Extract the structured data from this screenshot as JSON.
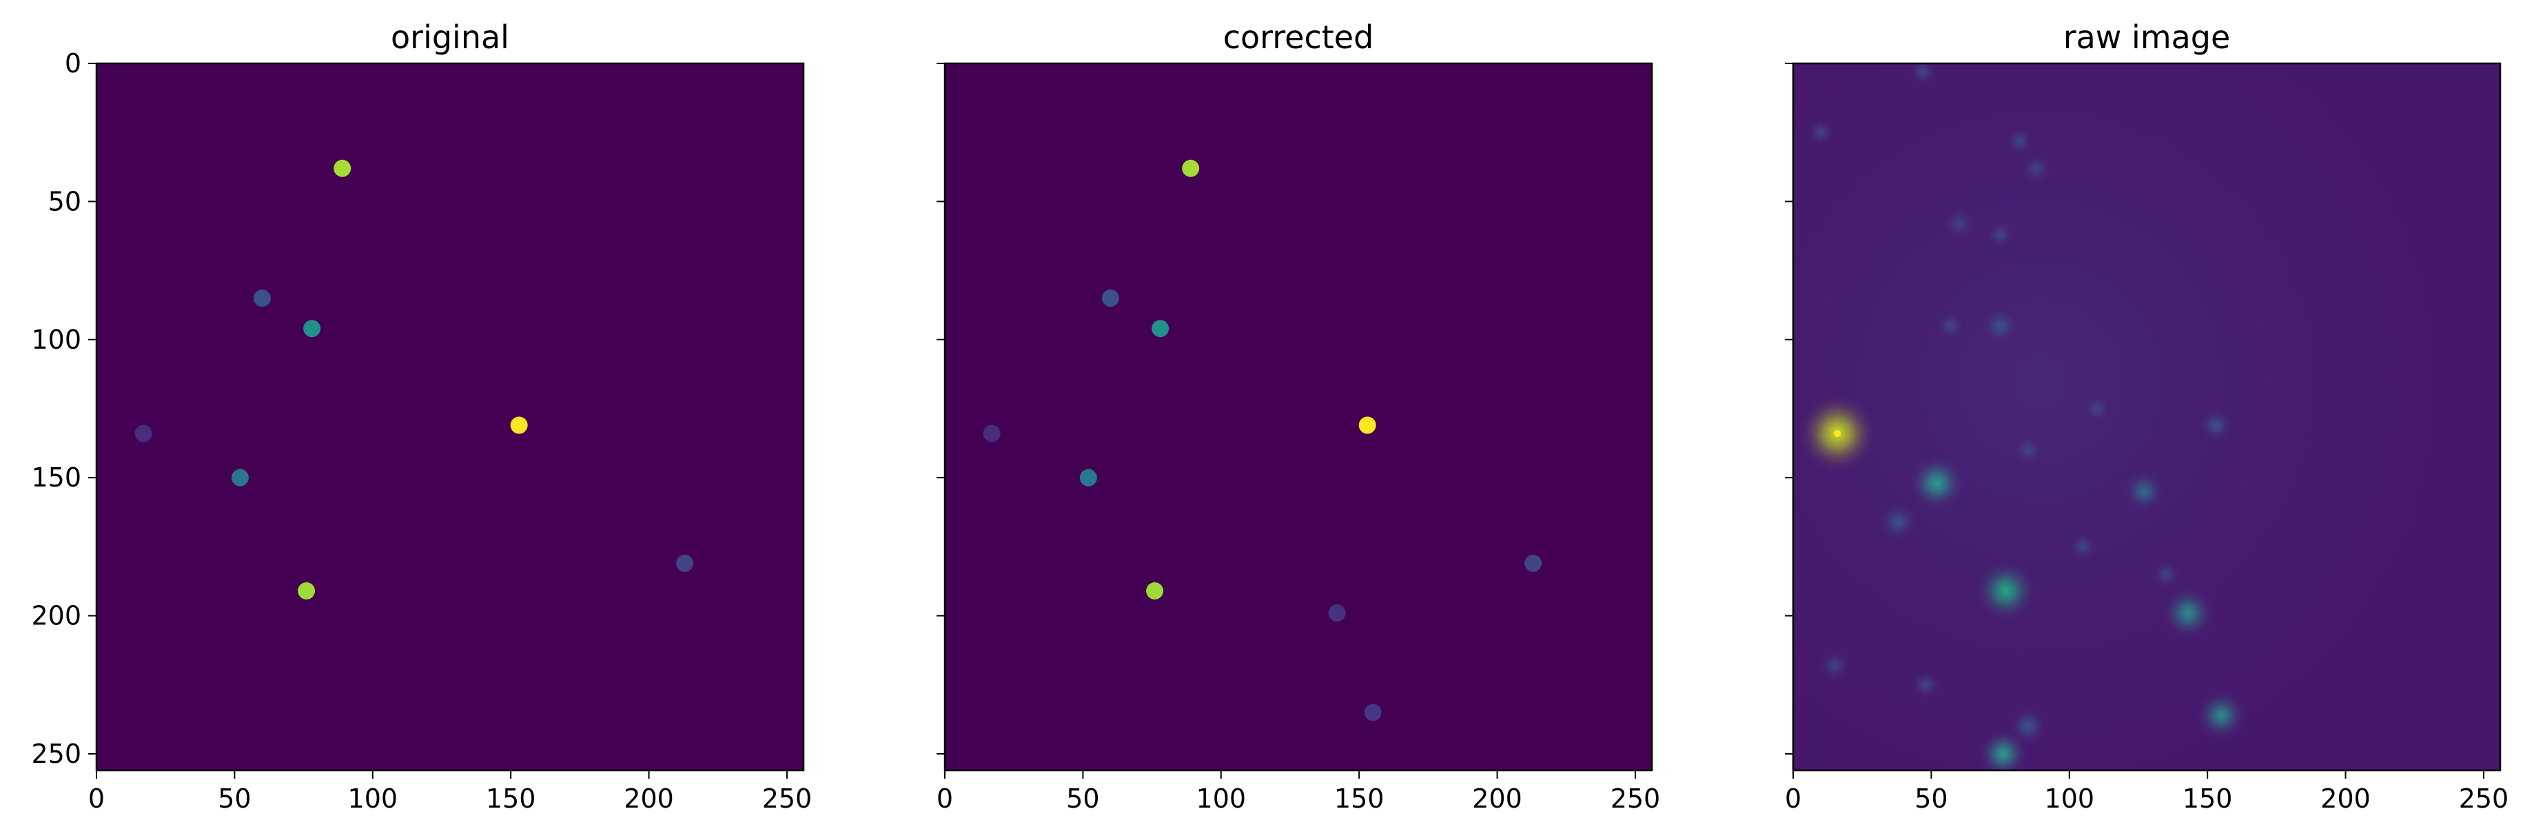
{
  "figure": {
    "background": "#ffffff",
    "colormap": "viridis"
  },
  "chart_data": [
    {
      "type": "heatmap",
      "title": "original",
      "xlim": [
        0,
        256
      ],
      "ylim": [
        256,
        0
      ],
      "xticks": [
        0,
        50,
        100,
        150,
        200,
        250
      ],
      "yticks": [
        0,
        50,
        100,
        150,
        200,
        250
      ],
      "background_color": "#440154",
      "blobs": [
        {
          "x": 89,
          "y": 38,
          "color": "#a7db35"
        },
        {
          "x": 60,
          "y": 85,
          "color": "#3b518b"
        },
        {
          "x": 78,
          "y": 96,
          "color": "#21918c"
        },
        {
          "x": 17,
          "y": 134,
          "color": "#472d7b"
        },
        {
          "x": 153,
          "y": 131,
          "color": "#fde725"
        },
        {
          "x": 52,
          "y": 150,
          "color": "#2a788e"
        },
        {
          "x": 213,
          "y": 181,
          "color": "#414487"
        },
        {
          "x": 76,
          "y": 191,
          "color": "#a0da39"
        }
      ]
    },
    {
      "type": "heatmap",
      "title": "corrected",
      "xlim": [
        0,
        256
      ],
      "ylim": [
        256,
        0
      ],
      "xticks": [
        0,
        50,
        100,
        150,
        200,
        250
      ],
      "yticks": [
        0,
        50,
        100,
        150,
        200,
        250
      ],
      "background_color": "#440154",
      "blobs": [
        {
          "x": 89,
          "y": 38,
          "color": "#a7db35"
        },
        {
          "x": 60,
          "y": 85,
          "color": "#3b518b"
        },
        {
          "x": 78,
          "y": 96,
          "color": "#21918c"
        },
        {
          "x": 17,
          "y": 134,
          "color": "#472d7b"
        },
        {
          "x": 153,
          "y": 131,
          "color": "#fde725"
        },
        {
          "x": 52,
          "y": 150,
          "color": "#2a788e"
        },
        {
          "x": 213,
          "y": 181,
          "color": "#414487"
        },
        {
          "x": 76,
          "y": 191,
          "color": "#a0da39"
        },
        {
          "x": 142,
          "y": 199,
          "color": "#46337f"
        },
        {
          "x": 155,
          "y": 235,
          "color": "#453781"
        }
      ]
    },
    {
      "type": "heatmap",
      "title": "raw image",
      "xlim": [
        0,
        256
      ],
      "ylim": [
        256,
        0
      ],
      "xticks": [
        0,
        50,
        100,
        150,
        200,
        250
      ],
      "yticks": [
        0,
        50,
        100,
        150,
        200,
        250
      ],
      "background_color": "#46186c",
      "spots": [
        {
          "x": 16,
          "y": 134,
          "intensity": 1.0,
          "color": "#c8e020"
        },
        {
          "x": 52,
          "y": 152,
          "intensity": 0.6,
          "color": "#2a9d8f"
        },
        {
          "x": 77,
          "y": 191,
          "intensity": 0.7,
          "color": "#22a884"
        },
        {
          "x": 143,
          "y": 199,
          "intensity": 0.55,
          "color": "#2a8c8c"
        },
        {
          "x": 155,
          "y": 236,
          "intensity": 0.5,
          "color": "#2a8c8c"
        },
        {
          "x": 76,
          "y": 250,
          "intensity": 0.5,
          "color": "#2a9d8f"
        },
        {
          "x": 127,
          "y": 155,
          "intensity": 0.35,
          "color": "#31688e"
        },
        {
          "x": 38,
          "y": 166,
          "intensity": 0.3,
          "color": "#3b528b"
        },
        {
          "x": 75,
          "y": 95,
          "intensity": 0.25,
          "color": "#3b528b"
        },
        {
          "x": 85,
          "y": 240,
          "intensity": 0.3,
          "color": "#3b528b"
        },
        {
          "x": 153,
          "y": 131,
          "intensity": 0.2,
          "color": "#3b528b"
        },
        {
          "x": 88,
          "y": 38,
          "intensity": 0.15,
          "color": "#414487"
        },
        {
          "x": 60,
          "y": 58,
          "intensity": 0.15,
          "color": "#414487"
        },
        {
          "x": 15,
          "y": 218,
          "intensity": 0.15,
          "color": "#414487"
        },
        {
          "x": 48,
          "y": 225,
          "intensity": 0.12,
          "color": "#414487"
        },
        {
          "x": 47,
          "y": 3,
          "intensity": 0.12,
          "color": "#414487"
        },
        {
          "x": 105,
          "y": 175,
          "intensity": 0.12,
          "color": "#414487"
        },
        {
          "x": 135,
          "y": 185,
          "intensity": 0.12,
          "color": "#414487"
        },
        {
          "x": 57,
          "y": 95,
          "intensity": 0.12,
          "color": "#414487"
        },
        {
          "x": 82,
          "y": 28,
          "intensity": 0.12,
          "color": "#414487"
        },
        {
          "x": 85,
          "y": 140,
          "intensity": 0.12,
          "color": "#414487"
        },
        {
          "x": 10,
          "y": 25,
          "intensity": 0.1,
          "color": "#414487"
        },
        {
          "x": 75,
          "y": 62,
          "intensity": 0.1,
          "color": "#414487"
        },
        {
          "x": 110,
          "y": 125,
          "intensity": 0.1,
          "color": "#414487"
        }
      ]
    }
  ]
}
